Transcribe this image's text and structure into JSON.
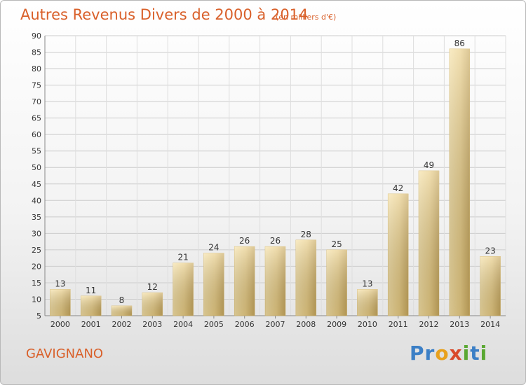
{
  "chart_data": {
    "type": "bar",
    "title": "Autres Revenus Divers de 2000 à 2014",
    "subtitle": "(en milliers d'€)",
    "categories": [
      "2000",
      "2001",
      "2002",
      "2003",
      "2004",
      "2005",
      "2006",
      "2007",
      "2008",
      "2009",
      "2010",
      "2011",
      "2012",
      "2013",
      "2014"
    ],
    "values": [
      13,
      11,
      8,
      12,
      21,
      24,
      26,
      26,
      28,
      25,
      13,
      42,
      49,
      86,
      23
    ],
    "ylim": [
      5,
      90
    ],
    "yticks": [
      5,
      10,
      15,
      20,
      25,
      30,
      35,
      40,
      45,
      50,
      55,
      60,
      65,
      70,
      75,
      80,
      85,
      90
    ],
    "grid": true,
    "bar_color": "#e9cd85"
  },
  "footer": {
    "commune": "GAVIGNANO",
    "brand_letters": [
      {
        "ch": "P",
        "color": "#3b7fc6"
      },
      {
        "ch": "r",
        "color": "#3b7fc6"
      },
      {
        "ch": "o",
        "color": "#e8a11d"
      },
      {
        "ch": "x",
        "color": "#d94a2b"
      },
      {
        "ch": "i",
        "color": "#5aa832"
      },
      {
        "ch": "t",
        "color": "#3b7fc6"
      },
      {
        "ch": "i",
        "color": "#5aa832"
      }
    ]
  }
}
